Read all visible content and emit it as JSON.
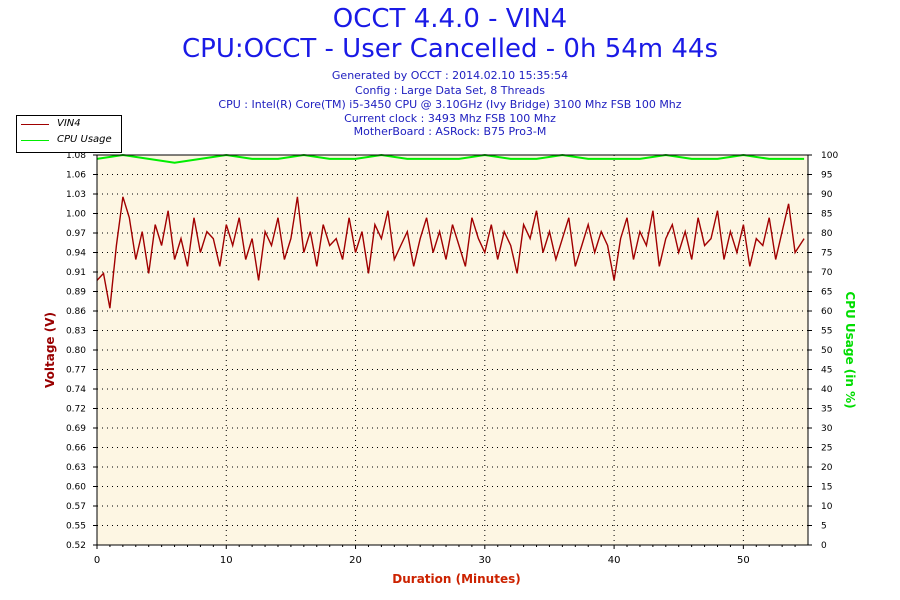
{
  "header": {
    "title": "OCCT 4.4.0 - VIN4",
    "subtitle": "CPU:OCCT - User Cancelled - 0h 54m 44s",
    "info": [
      "Generated by OCCT : 2014.02.10 15:35:54",
      "Config : Large Data Set, 8 Threads",
      "CPU : Intel(R) Core(TM) i5-3450 CPU @ 3.10GHz (Ivy Bridge) 3100 Mhz FSB 100 Mhz",
      "Current clock : 3493 Mhz FSB 100 Mhz",
      "MotherBoard : ASRock: B75 Pro3-M"
    ]
  },
  "legend": {
    "items": [
      {
        "label": "VIN4",
        "color": "#a00000"
      },
      {
        "label": "CPU Usage",
        "color": "#00ee00"
      }
    ]
  },
  "colors": {
    "plot_bg": "#fdf6e3",
    "voltage": "#a00000",
    "cpu": "#00ee00",
    "x_label": "#cc2200",
    "y_label": "#990000",
    "y2_label": "#00dd00"
  },
  "chart_data": {
    "type": "line",
    "xlabel": "Duration (Minutes)",
    "ylabel": "Voltage (V)",
    "y2label": "CPU Usage (in %)",
    "xlim": [
      0,
      55
    ],
    "ylim": [
      0.52,
      1.08
    ],
    "y2lim": [
      0,
      100
    ],
    "x_ticks": [
      "0",
      "10",
      "20",
      "30",
      "40",
      "50"
    ],
    "y_ticks": [
      "0.52",
      "0.55",
      "0.57",
      "0.60",
      "0.63",
      "0.66",
      "0.69",
      "0.72",
      "0.74",
      "0.77",
      "0.80",
      "0.83",
      "0.86",
      "0.89",
      "0.91",
      "0.94",
      "0.97",
      "1.00",
      "1.03",
      "1.06",
      "1.08"
    ],
    "y2_ticks": [
      "0",
      "5",
      "10",
      "15",
      "20",
      "25",
      "30",
      "35",
      "40",
      "45",
      "50",
      "55",
      "60",
      "65",
      "70",
      "75",
      "80",
      "85",
      "90",
      "95",
      "100"
    ],
    "series": [
      {
        "name": "VIN4",
        "x": [
          0,
          0.5,
          1,
          1.5,
          2,
          2.5,
          3,
          3.5,
          4,
          4.5,
          5,
          5.5,
          6,
          6.5,
          7,
          7.5,
          8,
          8.5,
          9,
          9.5,
          10,
          10.5,
          11,
          11.5,
          12,
          12.5,
          13,
          13.5,
          14,
          14.5,
          15,
          15.5,
          16,
          16.5,
          17,
          17.5,
          18,
          18.5,
          19,
          19.5,
          20,
          20.5,
          21,
          21.5,
          22,
          22.5,
          23,
          23.5,
          24,
          24.5,
          25,
          25.5,
          26,
          26.5,
          27,
          27.5,
          28,
          28.5,
          29,
          29.5,
          30,
          30.5,
          31,
          31.5,
          32,
          32.5,
          33,
          33.5,
          34,
          34.5,
          35,
          35.5,
          36,
          36.5,
          37,
          37.5,
          38,
          38.5,
          39,
          39.5,
          40,
          40.5,
          41,
          41.5,
          42,
          42.5,
          43,
          43.5,
          44,
          44.5,
          45,
          45.5,
          46,
          46.5,
          47,
          47.5,
          48,
          48.5,
          49,
          49.5,
          50,
          50.5,
          51,
          51.5,
          52,
          52.5,
          53,
          53.5,
          54,
          54.7
        ],
        "values": [
          0.9,
          0.91,
          0.86,
          0.95,
          1.02,
          0.99,
          0.93,
          0.97,
          0.91,
          0.98,
          0.95,
          1.0,
          0.93,
          0.96,
          0.92,
          0.99,
          0.94,
          0.97,
          0.96,
          0.92,
          0.98,
          0.95,
          0.99,
          0.93,
          0.96,
          0.9,
          0.97,
          0.95,
          0.99,
          0.93,
          0.96,
          1.02,
          0.94,
          0.97,
          0.92,
          0.98,
          0.95,
          0.96,
          0.93,
          0.99,
          0.94,
          0.97,
          0.91,
          0.98,
          0.96,
          1.0,
          0.93,
          0.95,
          0.97,
          0.92,
          0.96,
          0.99,
          0.94,
          0.97,
          0.93,
          0.98,
          0.95,
          0.92,
          0.99,
          0.96,
          0.94,
          0.98,
          0.93,
          0.97,
          0.95,
          0.91,
          0.98,
          0.96,
          1.0,
          0.94,
          0.97,
          0.93,
          0.96,
          0.99,
          0.92,
          0.95,
          0.98,
          0.94,
          0.97,
          0.95,
          0.9,
          0.96,
          0.99,
          0.93,
          0.97,
          0.95,
          1.0,
          0.92,
          0.96,
          0.98,
          0.94,
          0.97,
          0.93,
          0.99,
          0.95,
          0.96,
          1.0,
          0.93,
          0.97,
          0.94,
          0.98,
          0.92,
          0.96,
          0.95,
          0.99,
          0.93,
          0.97,
          1.01,
          0.94,
          0.96
        ]
      },
      {
        "name": "CPU Usage",
        "x": [
          0,
          2,
          4,
          6,
          8,
          10,
          12,
          14,
          16,
          18,
          20,
          22,
          24,
          26,
          28,
          30,
          32,
          34,
          36,
          38,
          40,
          42,
          44,
          46,
          48,
          50,
          52,
          54.7
        ],
        "values": [
          99,
          100,
          99,
          98,
          99,
          100,
          99,
          99,
          100,
          99,
          99,
          100,
          99,
          99,
          99,
          100,
          99,
          99,
          100,
          99,
          99,
          99,
          100,
          99,
          99,
          100,
          99,
          99
        ]
      }
    ]
  }
}
